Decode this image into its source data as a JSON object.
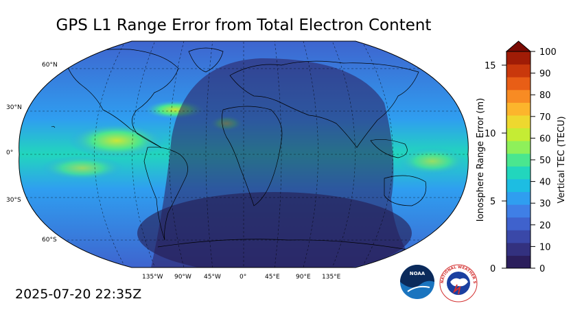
{
  "title": "GPS L1 Range Error from Total Electron Content",
  "timestamp": "2025-07-20 22:35Z",
  "map": {
    "lat_labels": [
      "60°N",
      "30°N",
      "0°",
      "30°S",
      "60°S"
    ],
    "lon_labels": [
      "135°W",
      "90°W",
      "45°W",
      "0°",
      "45°E",
      "90°E",
      "135°E"
    ]
  },
  "colorbar": {
    "left_label": "Ionosphere Range Error (m)",
    "right_label": "Vertical TEC (TECU)",
    "left_ticks": [
      "0",
      "5",
      "10",
      "15"
    ],
    "right_ticks": [
      "0",
      "10",
      "20",
      "30",
      "40",
      "50",
      "60",
      "70",
      "80",
      "90",
      "100"
    ],
    "colors": [
      "#2b1e5c",
      "#33317f",
      "#3a48a8",
      "#3f62cd",
      "#3f7fe6",
      "#2f9ef0",
      "#1dbde2",
      "#22d6bd",
      "#4ae68f",
      "#8ef05a",
      "#c5ec34",
      "#eed82f",
      "#fcb52c",
      "#f88b23",
      "#e85e16",
      "#c9380c",
      "#a01c06",
      "#7a0a03"
    ]
  },
  "logos": {
    "noaa_text": "NOAA",
    "nws_text": "NATIONAL WEATHER SERVICE"
  }
}
